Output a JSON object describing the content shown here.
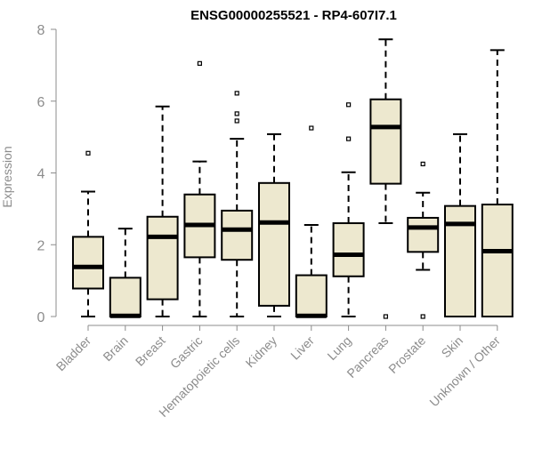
{
  "chart_data": {
    "type": "boxplot",
    "title": "ENSG00000255521 - RP4-607I7.1",
    "xlabel": "",
    "ylabel": "Expression",
    "ylim": [
      0,
      8
    ],
    "yticks": [
      0,
      2,
      4,
      6,
      8
    ],
    "grid": false,
    "legend": "none",
    "box_fill": "#ede8cf",
    "categories": [
      "Bladder",
      "Brain",
      "Breast",
      "Gastric",
      "Hematopoietic cells",
      "Kidney",
      "Liver",
      "Lung",
      "Pancreas",
      "Prostate",
      "Skin",
      "Unknown / Other"
    ],
    "boxes": [
      {
        "min": 0,
        "q1": 0.78,
        "median": 1.38,
        "q3": 2.22,
        "max": 3.48,
        "outliers": [
          4.55
        ]
      },
      {
        "min": 0,
        "q1": 0,
        "median": 0.02,
        "q3": 1.08,
        "max": 2.45,
        "outliers": []
      },
      {
        "min": 0,
        "q1": 0.48,
        "median": 2.22,
        "q3": 2.78,
        "max": 5.85,
        "outliers": []
      },
      {
        "min": 0,
        "q1": 1.65,
        "median": 2.55,
        "q3": 3.4,
        "max": 4.32,
        "outliers": [
          7.05
        ]
      },
      {
        "min": 0,
        "q1": 1.58,
        "median": 2.42,
        "q3": 2.95,
        "max": 4.95,
        "outliers": [
          5.45,
          5.65,
          6.22
        ]
      },
      {
        "min": 0,
        "q1": 0.3,
        "median": 2.62,
        "q3": 3.72,
        "max": 5.08,
        "outliers": []
      },
      {
        "min": 0,
        "q1": 0,
        "median": 0.02,
        "q3": 1.15,
        "max": 2.55,
        "outliers": [
          5.25
        ]
      },
      {
        "min": 0,
        "q1": 1.12,
        "median": 1.72,
        "q3": 2.6,
        "max": 4.02,
        "outliers": [
          4.95,
          5.9
        ]
      },
      {
        "min": 2.6,
        "q1": 3.7,
        "median": 5.28,
        "q3": 6.05,
        "max": 7.72,
        "outliers": [
          0
        ]
      },
      {
        "min": 1.3,
        "q1": 1.8,
        "median": 2.48,
        "q3": 2.75,
        "max": 3.45,
        "outliers": [
          4.25,
          0
        ]
      },
      {
        "min": 0,
        "q1": 0,
        "median": 2.58,
        "q3": 3.08,
        "max": 5.08,
        "outliers": []
      },
      {
        "min": 0,
        "q1": 0,
        "median": 1.82,
        "q3": 3.12,
        "max": 7.42,
        "outliers": []
      }
    ]
  }
}
